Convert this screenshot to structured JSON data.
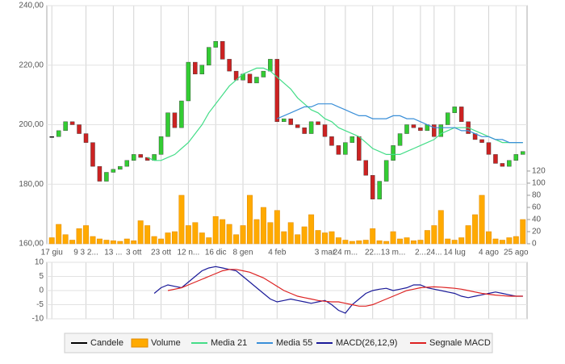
{
  "chart_data": [
    {
      "type": "candlestick",
      "categories": [
        "17 giu",
        null,
        null,
        null,
        null,
        "9 3 2...",
        null,
        null,
        null,
        "13 ...",
        null,
        null,
        "3 ott",
        null,
        null,
        null,
        "23 ott",
        null,
        null,
        null,
        "12 n...",
        null,
        null,
        null,
        "16 dic",
        null,
        null,
        null,
        "8 gen",
        null,
        null,
        null,
        null,
        "4 feb",
        null,
        null,
        null,
        null,
        null,
        null,
        "3 mar",
        null,
        null,
        "24 m...",
        null,
        null,
        null,
        "22...",
        null,
        null,
        "13 m...",
        null,
        null,
        null,
        "2...",
        null,
        "24...",
        null,
        null,
        "14 lug",
        null,
        null,
        null,
        null,
        "4 ago",
        null,
        null,
        null,
        "25 ago",
        null
      ],
      "series": [
        {
          "name": "Candele",
          "type": "candlestick",
          "color": "#000000",
          "up_color": "#33cc33",
          "down_color": "#cc2222",
          "open": [
            196,
            196,
            198,
            201,
            200,
            197,
            194,
            186,
            181,
            184,
            185,
            186,
            188,
            190,
            189,
            188,
            190,
            196,
            204,
            199,
            208,
            221,
            217,
            220,
            226,
            228,
            222,
            218,
            215,
            217,
            214,
            216,
            218,
            222,
            201,
            202,
            200,
            199,
            197,
            201,
            200,
            196,
            193,
            190,
            194,
            196,
            188,
            183,
            175,
            181,
            188,
            193,
            197,
            200,
            199,
            198,
            200,
            196,
            200,
            204,
            206,
            201,
            197,
            195,
            194,
            190,
            187,
            186,
            188,
            190
          ],
          "close": [
            196,
            198,
            201,
            200,
            197,
            194,
            186,
            181,
            184,
            185,
            186,
            188,
            190,
            189,
            188,
            190,
            196,
            204,
            199,
            208,
            221,
            217,
            220,
            226,
            228,
            222,
            218,
            215,
            217,
            214,
            216,
            218,
            222,
            201,
            202,
            200,
            199,
            197,
            201,
            200,
            196,
            193,
            190,
            194,
            196,
            188,
            183,
            175,
            181,
            188,
            193,
            197,
            200,
            199,
            198,
            200,
            196,
            200,
            204,
            206,
            201,
            197,
            195,
            194,
            190,
            187,
            186,
            188,
            190,
            191
          ]
        },
        {
          "name": "Volume",
          "type": "bar",
          "axis": "y2",
          "color": "#ffaa00",
          "values": [
            10,
            32,
            15,
            6,
            25,
            30,
            12,
            8,
            6,
            5,
            4,
            8,
            5,
            38,
            30,
            12,
            8,
            18,
            20,
            80,
            30,
            35,
            18,
            10,
            45,
            40,
            32,
            15,
            30,
            80,
            40,
            60,
            35,
            55,
            20,
            35,
            15,
            28,
            48,
            22,
            18,
            20,
            10,
            6,
            4,
            5,
            6,
            25,
            5,
            4,
            20,
            8,
            10,
            5,
            6,
            22,
            30,
            55,
            8,
            6,
            10,
            30,
            48,
            80,
            20,
            8,
            6,
            10,
            12,
            40
          ]
        },
        {
          "name": "Media 21",
          "type": "line",
          "color": "#44dd88",
          "values": [
            null,
            null,
            null,
            null,
            null,
            null,
            null,
            null,
            null,
            null,
            null,
            null,
            null,
            null,
            189,
            188,
            188,
            189,
            190,
            192,
            194,
            197,
            200,
            204,
            207,
            210,
            213,
            215,
            217,
            218,
            219,
            219,
            218,
            216,
            214,
            212,
            209,
            207,
            205,
            204,
            202,
            201,
            199,
            198,
            197,
            196,
            194,
            192,
            191,
            190,
            190,
            190,
            191,
            192,
            193,
            194,
            195,
            197,
            198,
            199,
            199,
            199,
            198,
            197,
            196,
            195,
            194,
            194,
            194,
            194
          ]
        },
        {
          "name": "Media 55",
          "type": "line",
          "color": "#3a8fd8",
          "values": [
            null,
            null,
            null,
            null,
            null,
            null,
            null,
            null,
            null,
            null,
            null,
            null,
            null,
            null,
            null,
            null,
            null,
            null,
            null,
            null,
            null,
            null,
            null,
            null,
            null,
            null,
            null,
            null,
            null,
            null,
            null,
            null,
            null,
            202,
            203,
            204,
            205,
            206,
            206,
            207,
            207,
            207,
            206,
            205,
            204,
            203,
            203,
            202,
            202,
            202,
            203,
            203,
            202,
            202,
            201,
            200,
            199,
            199,
            199,
            199,
            198,
            198,
            197,
            196,
            196,
            195,
            195,
            194,
            194,
            194
          ]
        }
      ],
      "ylim": [
        160,
        240
      ],
      "yticks": [
        {
          "value": 160,
          "label": "160,00"
        },
        {
          "value": 180,
          "label": "180,00"
        },
        {
          "value": 200,
          "label": "200,00"
        },
        {
          "value": 220,
          "label": "220,00"
        },
        {
          "value": 240,
          "label": "240,00"
        }
      ],
      "y2lim": [
        0,
        393
      ],
      "y2ticks": [
        0,
        20,
        40,
        60,
        80,
        100,
        120
      ],
      "grid": true
    },
    {
      "type": "line",
      "series": [
        {
          "name": "MACD(26,12,9)",
          "color": "#1a1a99",
          "values": [
            null,
            null,
            null,
            null,
            null,
            null,
            null,
            null,
            null,
            null,
            null,
            null,
            null,
            null,
            null,
            -1,
            1,
            2,
            1.5,
            1,
            3,
            5,
            7,
            8,
            8.5,
            8,
            7.5,
            7,
            5,
            3,
            1,
            -1,
            -3,
            -4,
            -3.5,
            -3,
            -3.5,
            -4,
            -4.5,
            -4,
            -3.5,
            -5,
            -7,
            -8,
            -5,
            -3,
            -1,
            0,
            0.5,
            0.8,
            0,
            0.5,
            1,
            2,
            2,
            1,
            0.5,
            0,
            -0.5,
            -1,
            -2,
            -2.5,
            -2,
            -1.5,
            -1,
            -0.5,
            -1,
            -1.5,
            -2,
            -2
          ]
        },
        {
          "name": "Segnale MACD",
          "color": "#dd2222",
          "values": [
            null,
            null,
            null,
            null,
            null,
            null,
            null,
            null,
            null,
            null,
            null,
            null,
            null,
            null,
            null,
            null,
            null,
            0,
            0.5,
            1,
            2,
            3,
            4,
            5,
            6,
            7,
            7.5,
            7.5,
            7,
            6.5,
            5.5,
            4.5,
            3,
            1.5,
            0,
            -1,
            -2,
            -2.5,
            -3,
            -3.5,
            -3.8,
            -4,
            -4,
            -4.5,
            -5,
            -5.5,
            -5.5,
            -5,
            -4,
            -3,
            -2,
            -1,
            0,
            0.5,
            1,
            1.2,
            1.3,
            1.2,
            1,
            0.8,
            0.5,
            0,
            -0.5,
            -1,
            -1.3,
            -1.6,
            -1.8,
            -2,
            -2,
            -2
          ]
        }
      ],
      "ylim": [
        -10,
        10
      ],
      "yticks": [
        10,
        5,
        0,
        -5,
        -10
      ],
      "grid": true
    }
  ]
}
